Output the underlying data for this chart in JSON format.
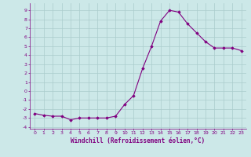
{
  "x": [
    0,
    1,
    2,
    3,
    4,
    5,
    6,
    7,
    8,
    9,
    10,
    11,
    12,
    13,
    14,
    15,
    16,
    17,
    18,
    19,
    20,
    21,
    22,
    23
  ],
  "y": [
    -2.5,
    -2.7,
    -2.8,
    -2.8,
    -3.2,
    -3.0,
    -3.0,
    -3.0,
    -3.0,
    -2.8,
    -1.5,
    -0.5,
    2.5,
    5.0,
    7.8,
    9.0,
    8.8,
    7.5,
    6.5,
    5.5,
    4.8,
    4.8,
    4.8,
    4.5
  ],
  "line_color": "#800080",
  "marker": "D",
  "marker_size": 1.8,
  "bg_color": "#cce8e8",
  "grid_color": "#aacccc",
  "xlabel": "Windchill (Refroidissement éolien,°C)",
  "xlabel_fontsize": 5.5,
  "ylim": [
    -4.2,
    9.8
  ],
  "xlim": [
    -0.5,
    23.5
  ],
  "yticks": [
    -4,
    -3,
    -2,
    -1,
    0,
    1,
    2,
    3,
    4,
    5,
    6,
    7,
    8,
    9
  ],
  "xticks": [
    0,
    1,
    2,
    3,
    4,
    5,
    6,
    7,
    8,
    9,
    10,
    11,
    12,
    13,
    14,
    15,
    16,
    17,
    18,
    19,
    20,
    21,
    22,
    23
  ],
  "tick_fontsize": 4.5,
  "axis_color": "#800080",
  "linewidth": 0.8
}
